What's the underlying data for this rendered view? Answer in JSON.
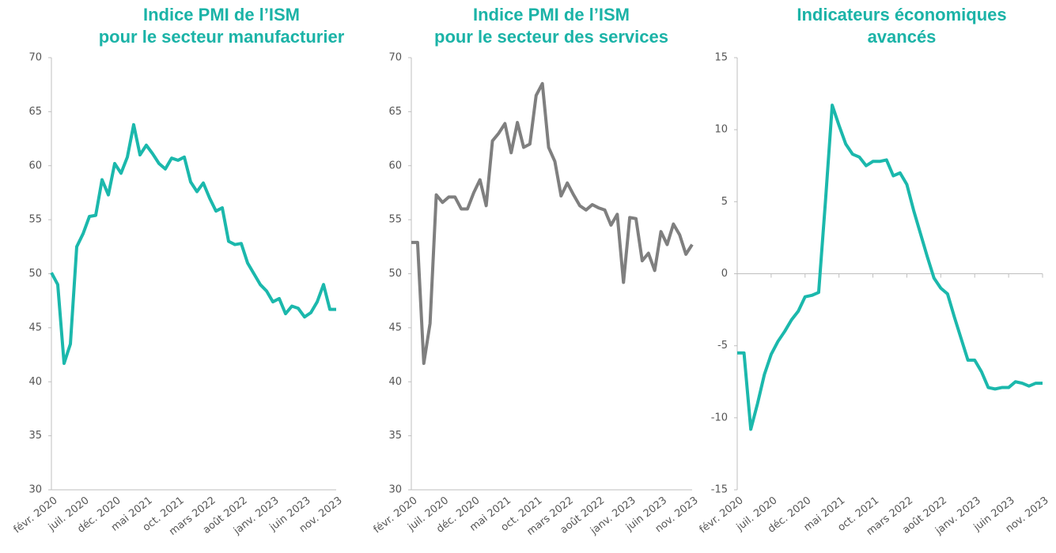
{
  "chart_data": [
    {
      "type": "line",
      "title": [
        "Indice PMI de l’ISM",
        "pour le secteur manufacturier"
      ],
      "categories": [
        "févr. 2020",
        null,
        null,
        null,
        null,
        "juil. 2020",
        null,
        null,
        null,
        null,
        "déc. 2020",
        null,
        null,
        null,
        null,
        "mai 2021",
        null,
        null,
        null,
        null,
        "oct. 2021",
        null,
        null,
        null,
        null,
        "mars 2022",
        null,
        null,
        null,
        null,
        "août 2022",
        null,
        null,
        null,
        null,
        "janv. 2023",
        null,
        null,
        null,
        null,
        "juin 2023",
        null,
        null,
        null,
        null,
        "nov. 2023"
      ],
      "series": [
        {
          "color": "#1bb8ac",
          "values": [
            50.1,
            49,
            41.7,
            43.5,
            52.5,
            53.7,
            55.3,
            55.4,
            58.7,
            57.3,
            60.2,
            59.3,
            60.8,
            63.8,
            61,
            61.9,
            61.1,
            60.2,
            59.7,
            60.7,
            60.5,
            60.8,
            58.5,
            57.6,
            58.4,
            57,
            55.8,
            56.1,
            53,
            52.7,
            52.8,
            51,
            50,
            49,
            48.4,
            47.4,
            47.7,
            46.3,
            47,
            46.8,
            46,
            46.4,
            47.4,
            49,
            46.7,
            46.7
          ]
        }
      ],
      "ylim": [
        30,
        70
      ],
      "yticks": [
        30,
        35,
        40,
        45,
        50,
        55,
        60,
        65,
        70
      ]
    },
    {
      "type": "line",
      "title": [
        "Indice PMI de l’ISM",
        "pour le secteur des services"
      ],
      "categories": [
        "févr. 2020",
        null,
        null,
        null,
        null,
        "juil. 2020",
        null,
        null,
        null,
        null,
        "déc. 2020",
        null,
        null,
        null,
        null,
        "mai 2021",
        null,
        null,
        null,
        null,
        "oct. 2021",
        null,
        null,
        null,
        null,
        "mars 2022",
        null,
        null,
        null,
        null,
        "août 2022",
        null,
        null,
        null,
        null,
        "janv. 2023",
        null,
        null,
        null,
        null,
        "juin 2023",
        null,
        null,
        null,
        null,
        "nov. 2023"
      ],
      "series": [
        {
          "color": "#7f7f7f",
          "values": [
            52.9,
            52.9,
            41.7,
            45.4,
            57.3,
            56.6,
            57.1,
            57.1,
            56,
            56,
            57.5,
            58.7,
            56.3,
            62.3,
            63,
            63.9,
            61.2,
            64,
            61.7,
            62,
            66.5,
            67.6,
            61.7,
            60.4,
            57.2,
            58.4,
            57.3,
            56.3,
            55.9,
            56.4,
            56.1,
            55.9,
            54.5,
            55.5,
            49.2,
            55.2,
            55.1,
            51.2,
            51.9,
            50.3,
            53.9,
            52.7,
            54.6,
            53.6,
            51.8,
            52.7
          ]
        }
      ],
      "ylim": [
        30,
        70
      ],
      "yticks": [
        30,
        35,
        40,
        45,
        50,
        55,
        60,
        65,
        70
      ]
    },
    {
      "type": "line",
      "title": [
        "Indicateurs économiques",
        "avancés"
      ],
      "categories": [
        "févr. 2020",
        null,
        null,
        null,
        null,
        "juil. 2020",
        null,
        null,
        null,
        null,
        "déc. 2020",
        null,
        null,
        null,
        null,
        "mai 2021",
        null,
        null,
        null,
        null,
        "oct. 2021",
        null,
        null,
        null,
        null,
        "mars 2022",
        null,
        null,
        null,
        null,
        "août 2022",
        null,
        null,
        null,
        null,
        "janv. 2023",
        null,
        null,
        null,
        null,
        "juin 2023",
        null,
        null,
        null,
        null,
        "nov. 2023"
      ],
      "series": [
        {
          "color": "#1bb8ac",
          "values": [
            -5.5,
            -5.5,
            -10.8,
            -9,
            -7,
            -5.6,
            -4.7,
            -4,
            -3.2,
            -2.6,
            -1.6,
            -1.5,
            -1.3,
            5,
            11.7,
            10.3,
            9,
            8.3,
            8.1,
            7.5,
            7.8,
            7.8,
            7.9,
            6.8,
            7,
            6.2,
            4.4,
            2.8,
            1.2,
            -0.3,
            -1,
            -1.4,
            -3,
            -4.5,
            -6,
            -6,
            -6.8,
            -7.9,
            -8,
            -7.9,
            -7.9,
            -7.5,
            -7.6,
            -7.8,
            -7.6,
            -7.6
          ]
        }
      ],
      "ylim": [
        -15,
        15
      ],
      "yticks": [
        -15,
        -10,
        -5,
        0,
        5,
        10,
        15
      ]
    }
  ]
}
